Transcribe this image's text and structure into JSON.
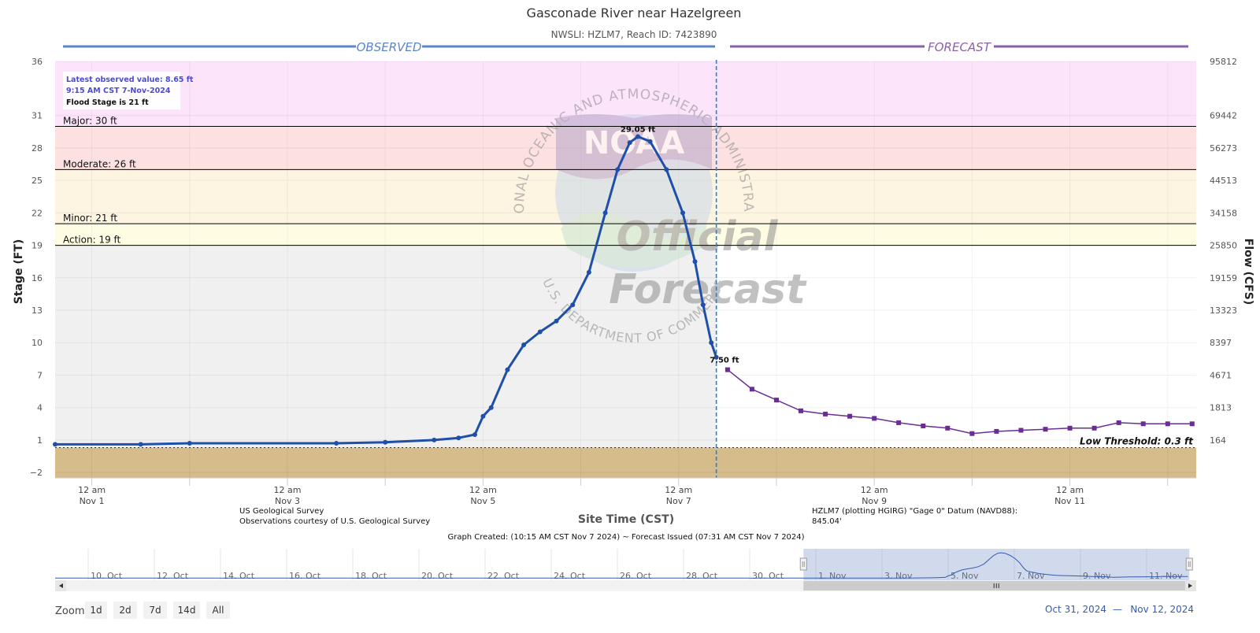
{
  "colors": {
    "observed": "#1f4fa8",
    "forecast": "#6a2d94",
    "major_band": "#fce4fb",
    "moderate_band": "#fde1e1",
    "minor_band": "#fdf4e1",
    "action_band": "#fefde4",
    "below_action": "#f0f0f0",
    "low_band": "#d6bc8a",
    "header_observed": "#5b86c8",
    "header_forecast": "#8a60aa"
  },
  "chart_data": {
    "type": "line",
    "title": "Gasconade River near Hazelgreen",
    "subtitle": "NWSLI: HZLM7, Reach ID: 7423890",
    "xlabel": "Site Time (CST)",
    "ylabel": "Stage (FT)",
    "y2label": "Flow (CFS)",
    "xlim": [
      "2024-10-31T15:00",
      "2024-11-12T07:00"
    ],
    "ylim": [
      -2.5,
      36
    ],
    "y_ticks": [
      -2,
      1,
      4,
      7,
      10,
      13,
      16,
      19,
      22,
      25,
      28,
      31,
      36
    ],
    "y2_ticks": [
      {
        "stage": 1,
        "label": "164"
      },
      {
        "stage": 4,
        "label": "1813"
      },
      {
        "stage": 7,
        "label": "4671"
      },
      {
        "stage": 10,
        "label": "8397"
      },
      {
        "stage": 13,
        "label": "13323"
      },
      {
        "stage": 16,
        "label": "19159"
      },
      {
        "stage": 19,
        "label": "25850"
      },
      {
        "stage": 22,
        "label": "34158"
      },
      {
        "stage": 25,
        "label": "44513"
      },
      {
        "stage": 28,
        "label": "56273"
      },
      {
        "stage": 31,
        "label": "69442"
      },
      {
        "stage": 36,
        "label": "95812"
      }
    ],
    "x_ticks": [
      {
        "t": "2024-11-01T00:00",
        "line1": "12 am",
        "line2": "Nov 1"
      },
      {
        "t": "2024-11-03T00:00",
        "line1": "12 am",
        "line2": "Nov 3"
      },
      {
        "t": "2024-11-05T00:00",
        "line1": "12 am",
        "line2": "Nov 5"
      },
      {
        "t": "2024-11-07T00:00",
        "line1": "12 am",
        "line2": "Nov 7"
      },
      {
        "t": "2024-11-09T00:00",
        "line1": "12 am",
        "line2": "Nov 9"
      },
      {
        "t": "2024-11-11T00:00",
        "line1": "12 am",
        "line2": "Nov 11"
      }
    ],
    "now_time": "2024-11-07T09:15",
    "header_observed": "OBSERVED",
    "header_forecast": "FORECAST",
    "thresholds": [
      {
        "name": "Major: 30 ft",
        "value": 30
      },
      {
        "name": "Moderate: 26 ft",
        "value": 26
      },
      {
        "name": "Minor: 21 ft",
        "value": 21
      },
      {
        "name": "Action: 19 ft",
        "value": 19
      }
    ],
    "low_threshold": {
      "label": "Low Threshold: 0.3 ft",
      "value": 0.3
    },
    "observed": [
      [
        "2024-10-31T15:00",
        0.6
      ],
      [
        "2024-11-01T12:00",
        0.6
      ],
      [
        "2024-11-02T00:00",
        0.7
      ],
      [
        "2024-11-03T12:00",
        0.7
      ],
      [
        "2024-11-04T00:00",
        0.8
      ],
      [
        "2024-11-04T12:00",
        1.0
      ],
      [
        "2024-11-04T18:00",
        1.2
      ],
      [
        "2024-11-04T22:00",
        1.5
      ],
      [
        "2024-11-05T00:00",
        3.2
      ],
      [
        "2024-11-05T02:00",
        4.0
      ],
      [
        "2024-11-05T06:00",
        7.5
      ],
      [
        "2024-11-05T10:00",
        9.8
      ],
      [
        "2024-11-05T14:00",
        11.0
      ],
      [
        "2024-11-05T18:00",
        12.0
      ],
      [
        "2024-11-05T22:00",
        13.5
      ],
      [
        "2024-11-06T02:00",
        16.5
      ],
      [
        "2024-11-06T06:00",
        22.0
      ],
      [
        "2024-11-06T09:00",
        26.0
      ],
      [
        "2024-11-06T12:00",
        28.5
      ],
      [
        "2024-11-06T14:00",
        29.05
      ],
      [
        "2024-11-06T17:00",
        28.6
      ],
      [
        "2024-11-06T21:00",
        26.0
      ],
      [
        "2024-11-07T01:00",
        22.0
      ],
      [
        "2024-11-07T04:00",
        17.5
      ],
      [
        "2024-11-07T06:00",
        13.5
      ],
      [
        "2024-11-07T08:00",
        10.0
      ],
      [
        "2024-11-07T09:15",
        8.65
      ]
    ],
    "forecast": [
      [
        "2024-11-07T12:00",
        7.5
      ],
      [
        "2024-11-07T18:00",
        5.7
      ],
      [
        "2024-11-08T00:00",
        4.7
      ],
      [
        "2024-11-08T06:00",
        3.7
      ],
      [
        "2024-11-08T12:00",
        3.4
      ],
      [
        "2024-11-08T18:00",
        3.2
      ],
      [
        "2024-11-09T00:00",
        3.0
      ],
      [
        "2024-11-09T06:00",
        2.6
      ],
      [
        "2024-11-09T12:00",
        2.3
      ],
      [
        "2024-11-09T18:00",
        2.1
      ],
      [
        "2024-11-10T00:00",
        1.6
      ],
      [
        "2024-11-10T06:00",
        1.8
      ],
      [
        "2024-11-10T12:00",
        1.9
      ],
      [
        "2024-11-10T18:00",
        2.0
      ],
      [
        "2024-11-11T00:00",
        2.1
      ],
      [
        "2024-11-11T06:00",
        2.1
      ],
      [
        "2024-11-11T12:00",
        2.6
      ],
      [
        "2024-11-11T18:00",
        2.5
      ],
      [
        "2024-11-12T00:00",
        2.5
      ],
      [
        "2024-11-12T06:00",
        2.5
      ]
    ],
    "labels": {
      "peak": {
        "t": "2024-11-06T14:00",
        "value": 29.05,
        "text": "29.05 ft"
      },
      "forecast_start": {
        "t": "2024-11-07T12:00",
        "value": 7.5,
        "text": "7.50 ft"
      }
    },
    "info_box": {
      "line1": "Latest observed value: 8.65 ft",
      "line2": "9:15 AM CST 7-Nov-2024",
      "line3": "Flood Stage is 21 ft"
    },
    "watermark": {
      "ring_text": "NATIONAL OCEANIC AND ATMOSPHERIC ADMINISTRATION",
      "ring_bottom": "U.S. DEPARTMENT OF COMMERCE",
      "logo": "NOAA",
      "official": "Official",
      "forecast": "Forecast"
    }
  },
  "credits": {
    "left_line1": "US Geological Survey",
    "left_line2": "Observations courtesy of U.S. Geological Survey",
    "right_line1": "HZLM7 (plotting HGIRG) \"Gage 0\" Datum (NAVD88):",
    "right_line2": "845.04'",
    "graph_created": "Graph Created: (10:15 AM CST Nov 7 2024) ~ Forecast Issued (07:31 AM CST Nov 7 2024)"
  },
  "navigator": {
    "x_start": "2024-10-09T00:00",
    "x_end": "2024-11-12T12:00",
    "ticks": [
      {
        "t": "2024-10-10T00:00",
        "label": "10. Oct"
      },
      {
        "t": "2024-10-12T00:00",
        "label": "12. Oct"
      },
      {
        "t": "2024-10-14T00:00",
        "label": "14. Oct"
      },
      {
        "t": "2024-10-16T00:00",
        "label": "16. Oct"
      },
      {
        "t": "2024-10-18T00:00",
        "label": "18. Oct"
      },
      {
        "t": "2024-10-20T00:00",
        "label": "20. Oct"
      },
      {
        "t": "2024-10-22T00:00",
        "label": "22. Oct"
      },
      {
        "t": "2024-10-24T00:00",
        "label": "24. Oct"
      },
      {
        "t": "2024-10-26T00:00",
        "label": "26. Oct"
      },
      {
        "t": "2024-10-28T00:00",
        "label": "28. Oct"
      },
      {
        "t": "2024-10-30T00:00",
        "label": "30. Oct"
      },
      {
        "t": "2024-11-01T00:00",
        "label": "1. Nov"
      },
      {
        "t": "2024-11-03T00:00",
        "label": "3. Nov"
      },
      {
        "t": "2024-11-05T00:00",
        "label": "5. Nov"
      },
      {
        "t": "2024-11-07T00:00",
        "label": "7. Nov"
      },
      {
        "t": "2024-11-09T00:00",
        "label": "9. Nov"
      },
      {
        "t": "2024-11-11T00:00",
        "label": "11. Nov"
      }
    ]
  },
  "zoom": {
    "label": "Zoom",
    "buttons": [
      "1d",
      "2d",
      "7d",
      "14d",
      "All"
    ],
    "range_from": "Oct 31, 2024",
    "range_sep": "—",
    "range_to": "Nov 12, 2024"
  }
}
